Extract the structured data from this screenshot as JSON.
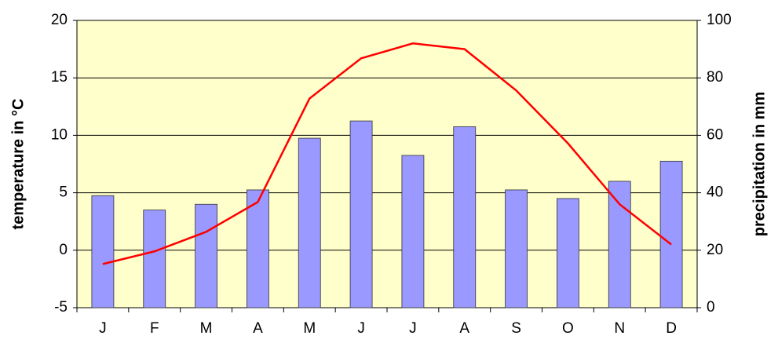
{
  "chart_data": {
    "type": "bar",
    "y_label": "temperature in °C",
    "y2_label": "precipitation in mm",
    "categories": [
      "J",
      "F",
      "M",
      "A",
      "M",
      "J",
      "J",
      "A",
      "S",
      "O",
      "N",
      "D"
    ],
    "series": [
      {
        "type": "bar",
        "axis": "y2",
        "color": "#9999ff",
        "values": [
          39,
          34,
          36,
          41,
          59,
          65,
          53,
          63,
          41,
          38,
          44,
          51
        ]
      },
      {
        "type": "line",
        "axis": "y",
        "color": "#ff0000",
        "values": [
          -1.2,
          -0.1,
          1.6,
          4.2,
          13.2,
          16.7,
          18.0,
          17.5,
          13.9,
          9.3,
          4.0,
          0.5
        ]
      }
    ],
    "ylim": [
      -5,
      20
    ],
    "yticks": [
      -5,
      0,
      5,
      10,
      15,
      20
    ],
    "y2lim": [
      0,
      100
    ],
    "y2ticks": [
      0,
      20,
      40,
      60,
      80,
      100
    ],
    "grid": true,
    "background": "#ffffcc"
  }
}
